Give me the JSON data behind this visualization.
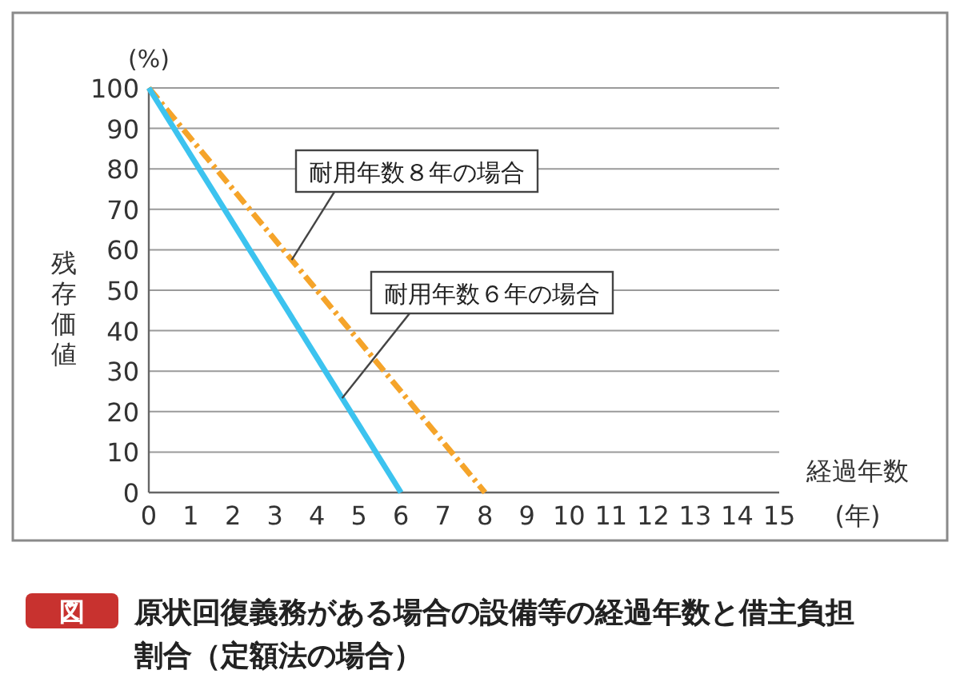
{
  "chart_data": {
    "type": "line",
    "title": "原状回復義務がある場合の設備等の経過年数と借主負担割合（定額法の場合）",
    "xlabel": "経過年数",
    "ylabel": "残存価値",
    "annotations": [
      "図",
      "(%)",
      "(年)"
    ],
    "series": [
      {
        "name": "耐用年数８年の場合",
        "color": "#f5a42a",
        "line_style": "dashed",
        "x": [
          0,
          8
        ],
        "values": [
          100,
          0
        ]
      },
      {
        "name": "耐用年数６年の場合",
        "color": "#3cc3ef",
        "line_style": "solid",
        "x": [
          0,
          6
        ],
        "values": [
          100,
          0
        ]
      }
    ],
    "xlim": [
      0,
      15
    ],
    "ylim": [
      0,
      100
    ],
    "xticks": [
      0,
      1,
      2,
      3,
      4,
      5,
      6,
      7,
      8,
      9,
      10,
      11,
      12,
      13,
      14,
      15
    ],
    "yticks": [
      0,
      10,
      20,
      30,
      40,
      50,
      60,
      70,
      80,
      90,
      100
    ],
    "grid": "y",
    "legend": false,
    "marker": "none"
  }
}
